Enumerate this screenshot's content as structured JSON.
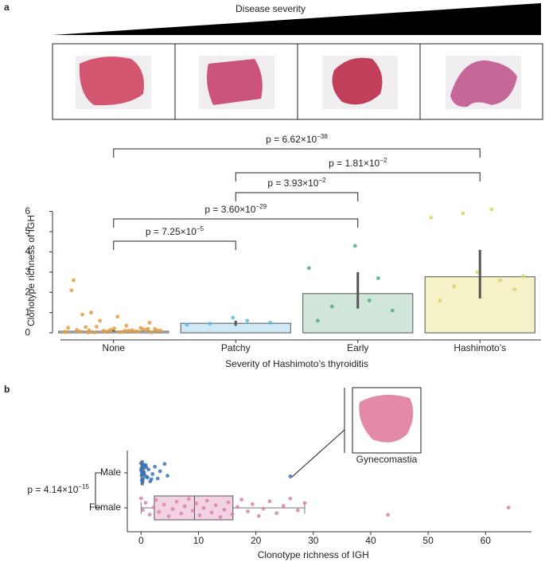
{
  "chart_data": [
    {
      "type": "bar",
      "panel_label": "a",
      "title": "Disease severity",
      "categories": [
        "None",
        "Patchy",
        "Early",
        "Hashimoto’s"
      ],
      "values": [
        0.08,
        0.47,
        1.94,
        2.77
      ],
      "ci_low": [
        0.05,
        0.35,
        1.2,
        1.7
      ],
      "ci_high": [
        0.15,
        0.6,
        3.0,
        4.1
      ],
      "bar_colors": [
        "#e3e3e3",
        "#cfe9f7",
        "#cfe6d8",
        "#f4f2c6"
      ],
      "point_colors": [
        "#e59b3f",
        "#5bb8de",
        "#55a987",
        "#d7d46c"
      ],
      "points": [
        [
          0.05,
          0.1,
          0.02,
          0.2,
          0.15,
          2.6,
          0.08,
          0.3,
          0.12,
          0.04,
          0.9,
          0.18,
          0.06,
          0.25,
          0.1,
          1.0,
          0.03,
          0.22,
          0.14,
          0.07,
          0.6,
          0.11,
          0.05,
          0.28,
          0.16,
          0.09,
          2.1,
          0.13,
          0.02,
          0.19,
          0.8,
          0.06,
          0.24,
          0.1,
          0.04,
          0.35,
          0.12,
          0.5
        ],
        [
          0.4,
          0.6,
          0.45,
          0.5,
          0.75
        ],
        [
          3.2,
          1.6,
          1.3,
          1.1,
          4.3,
          0.6,
          2.7
        ],
        [
          5.7,
          6.1,
          2.3,
          2.15,
          3.0,
          1.6,
          2.6,
          5.9,
          2.8
        ]
      ],
      "ylim": [
        -0.35,
        6.3
      ],
      "yticks": [
        0,
        1,
        2,
        3,
        4,
        5,
        6
      ],
      "y_label": "Clonotype richness of IGH",
      "x_label": "Severity of Hashimoto’s thyroiditis",
      "comparisons": [
        {
          "groups": [
            "None",
            "Hashimoto’s"
          ],
          "label": "p = 6.62×10",
          "exponent": "−38"
        },
        {
          "groups": [
            "Patchy",
            "Hashimoto’s"
          ],
          "label": "p = 1.81×10",
          "exponent": "−2"
        },
        {
          "groups": [
            "Patchy",
            "Early"
          ],
          "label": "p = 3.93×10",
          "exponent": "−2"
        },
        {
          "groups": [
            "None",
            "Early"
          ],
          "label": "p = 3.60×10",
          "exponent": "−29"
        },
        {
          "groups": [
            "None",
            "Patchy"
          ],
          "label": "p = 7.25×10",
          "exponent": "−5"
        }
      ]
    },
    {
      "type": "box",
      "panel_label": "b",
      "categories": [
        "Male",
        "Female"
      ],
      "boxes": [
        {
          "whislo": 0,
          "q1": 0,
          "med": 0.1,
          "q3": 0.4,
          "whishi": 0.6
        },
        {
          "whislo": 0,
          "q1": 2.3,
          "med": 9.3,
          "q3": 16,
          "whishi": 28.5
        }
      ],
      "colors": [
        "#3b74b7",
        "#d884ab"
      ],
      "box_fills": [
        "#cfe0f2",
        "#f3d3e3"
      ],
      "points": [
        [
          0,
          0.1,
          0.2,
          0.3,
          0.5,
          0.8,
          1.0,
          1.3,
          1.6,
          2.0,
          2.4,
          2.9,
          3.3,
          4.1,
          4.6,
          0.05,
          0.15,
          0.4,
          0.7,
          1.1,
          0.02,
          0.25,
          0.6,
          0.9,
          1.8,
          0.12,
          0.35,
          26
        ],
        [
          0,
          0.3,
          0.8,
          1.5,
          2.2,
          2.6,
          3.1,
          4.0,
          4.8,
          5.5,
          6.2,
          7.0,
          7.6,
          8.3,
          9.0,
          9.6,
          10.2,
          10.9,
          11.5,
          12.3,
          13.0,
          13.8,
          14.5,
          15.2,
          15.9,
          16.8,
          17.5,
          18.6,
          19.4,
          20.5,
          21.3,
          22.4,
          23.6,
          24.8,
          26.0,
          27.3,
          28.5,
          43,
          64
        ]
      ],
      "xlim": [
        -2.4,
        68
      ],
      "xticks": [
        0,
        10,
        20,
        30,
        40,
        50,
        60
      ],
      "x_label": "Clonotype richness of IGH",
      "comparison": {
        "label": "p = 4.14×10",
        "exponent": "−15"
      },
      "inset_label": "Gynecomastia"
    }
  ]
}
